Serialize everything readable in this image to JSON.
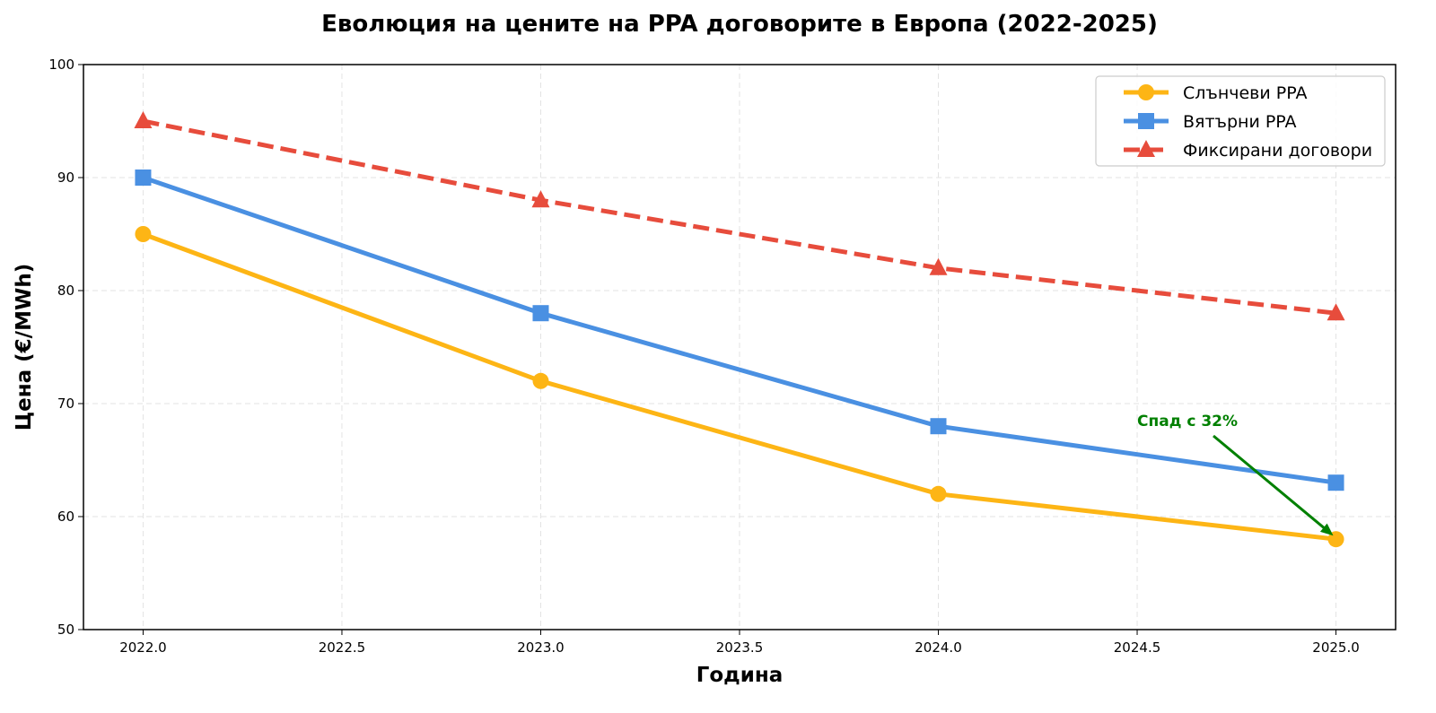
{
  "chart_data": {
    "type": "line",
    "title": "Еволюция на цените на PPA договорите в Европа (2022-2025)",
    "xlabel": "Година",
    "ylabel": "Цена (€/MWh)",
    "x": [
      2022,
      2023,
      2024,
      2025
    ],
    "xlim": [
      2021.85,
      2025.15
    ],
    "ylim": [
      50,
      100
    ],
    "xticks": [
      "2022.0",
      "2022.5",
      "2023.0",
      "2023.5",
      "2024.0",
      "2024.5",
      "2025.0"
    ],
    "xtick_values": [
      2022,
      2022.5,
      2023,
      2023.5,
      2024,
      2024.5,
      2025
    ],
    "yticks": [
      "50",
      "60",
      "70",
      "80",
      "90",
      "100"
    ],
    "ytick_values": [
      50,
      60,
      70,
      80,
      90,
      100
    ],
    "grid": true,
    "legend_position": "top-right",
    "series": [
      {
        "name": "Слънчеви PPA",
        "values": [
          85,
          72,
          62,
          58
        ],
        "color": "#FDB515",
        "marker": "circle",
        "linestyle": "solid"
      },
      {
        "name": "Вятърни PPA",
        "values": [
          90,
          78,
          68,
          63
        ],
        "color": "#4A90E2",
        "marker": "square",
        "linestyle": "solid"
      },
      {
        "name": "Фиксирани договори",
        "values": [
          95,
          88,
          82,
          78
        ],
        "color": "#E74C3C",
        "marker": "triangle",
        "linestyle": "dashed"
      }
    ],
    "annotations": [
      {
        "text": "Спад с 32%",
        "point": [
          2025,
          58
        ],
        "text_at": [
          2024.5,
          68
        ],
        "color": "#008000"
      }
    ]
  }
}
